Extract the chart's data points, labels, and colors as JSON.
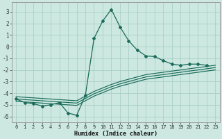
{
  "xlabel": "Humidex (Indice chaleur)",
  "background_color": "#cce8e0",
  "grid_color": "#aacfc8",
  "line_color": "#1a6b5a",
  "xlim": [
    -0.5,
    23.5
  ],
  "ylim": [
    -6.5,
    3.8
  ],
  "yticks": [
    -6,
    -5,
    -4,
    -3,
    -2,
    -1,
    0,
    1,
    2,
    3
  ],
  "xticks": [
    0,
    1,
    2,
    3,
    4,
    5,
    6,
    7,
    8,
    9,
    10,
    11,
    12,
    13,
    14,
    15,
    16,
    17,
    18,
    19,
    20,
    21,
    22,
    23
  ],
  "hours": [
    0,
    1,
    2,
    3,
    4,
    5,
    6,
    7,
    8,
    9,
    10,
    11,
    12,
    13,
    14,
    15,
    16,
    17,
    18,
    19,
    20,
    21,
    22,
    23
  ],
  "data_main": [
    -4.5,
    -4.8,
    -4.9,
    -5.1,
    -5.0,
    -4.8,
    -5.7,
    -5.9,
    -4.2,
    0.7,
    2.2,
    3.2,
    1.7,
    0.5,
    -0.3,
    -0.8,
    -0.85,
    -1.2,
    -1.5,
    -1.6,
    -1.5,
    -1.5,
    -1.6,
    null
  ],
  "data_line1": [
    -4.5,
    -4.55,
    -4.6,
    -4.65,
    -4.7,
    -4.75,
    -4.8,
    -4.85,
    -4.45,
    -4.05,
    -3.75,
    -3.45,
    -3.2,
    -3.0,
    -2.8,
    -2.6,
    -2.5,
    -2.4,
    -2.3,
    -2.2,
    -2.1,
    -2.0,
    -1.9,
    -1.8
  ],
  "data_line2": [
    -4.7,
    -4.75,
    -4.8,
    -4.85,
    -4.9,
    -4.95,
    -5.0,
    -5.05,
    -4.65,
    -4.25,
    -3.95,
    -3.65,
    -3.4,
    -3.2,
    -3.0,
    -2.8,
    -2.7,
    -2.6,
    -2.5,
    -2.4,
    -2.3,
    -2.2,
    -2.1,
    -2.0
  ],
  "data_line3": [
    -4.3,
    -4.35,
    -4.4,
    -4.45,
    -4.5,
    -4.55,
    -4.6,
    -4.65,
    -4.25,
    -3.85,
    -3.55,
    -3.25,
    -3.0,
    -2.8,
    -2.6,
    -2.4,
    -2.3,
    -2.2,
    -2.1,
    -2.0,
    -1.9,
    -1.8,
    -1.7,
    -1.6
  ]
}
